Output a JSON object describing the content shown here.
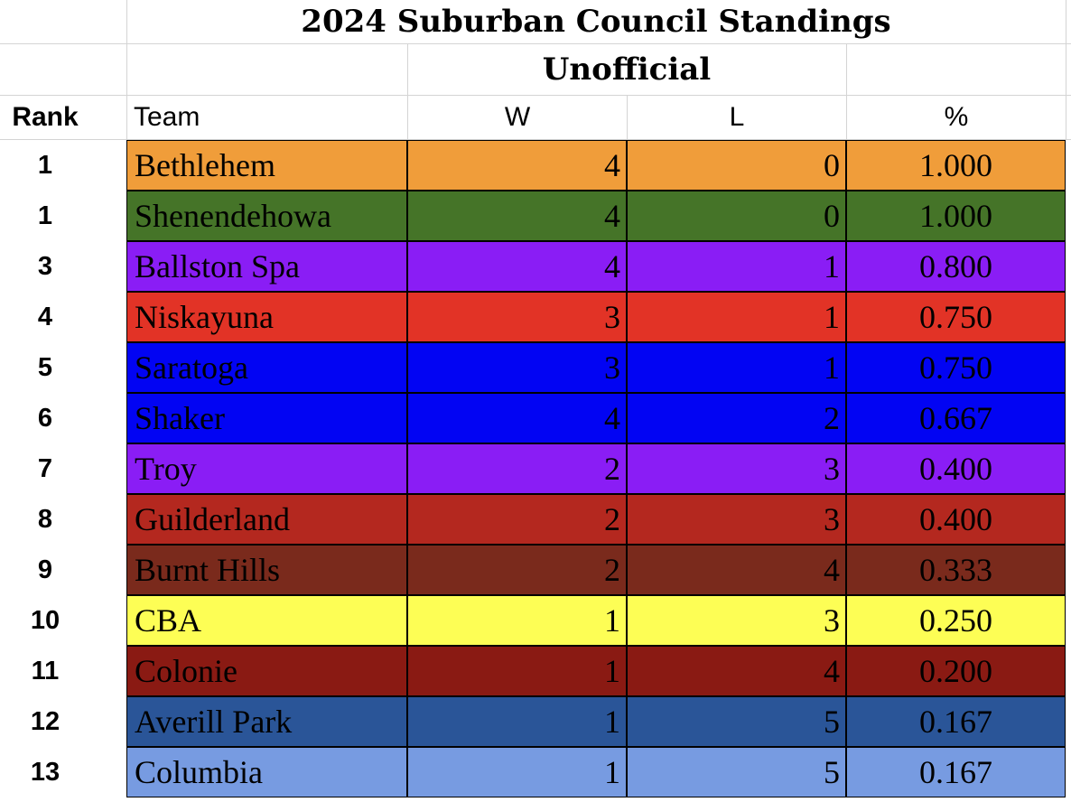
{
  "title": "2024 Suburban Council Standings",
  "subtitle": "Unofficial",
  "headers": {
    "rank": "Rank",
    "team": "Team",
    "w": "W",
    "l": "L",
    "pct": "%"
  },
  "rows": [
    {
      "rank": "1",
      "team": "Bethlehem",
      "w": "4",
      "l": "0",
      "pct": "1.000",
      "color": "#F09D3A"
    },
    {
      "rank": "1",
      "team": "Shenendehowa",
      "w": "4",
      "l": "0",
      "pct": "1.000",
      "color": "#457428"
    },
    {
      "rank": "3",
      "team": "Ballston Spa",
      "w": "4",
      "l": "1",
      "pct": "0.800",
      "color": "#8A1DF5"
    },
    {
      "rank": "4",
      "team": "Niskayuna",
      "w": "3",
      "l": "1",
      "pct": "0.750",
      "color": "#E23326"
    },
    {
      "rank": "5",
      "team": "Saratoga",
      "w": "3",
      "l": "1",
      "pct": "0.750",
      "color": "#0204F3"
    },
    {
      "rank": "6",
      "team": "Shaker",
      "w": "4",
      "l": "2",
      "pct": "0.667",
      "color": "#0204F3"
    },
    {
      "rank": "7",
      "team": "Troy",
      "w": "2",
      "l": "3",
      "pct": "0.400",
      "color": "#8A1DF5"
    },
    {
      "rank": "8",
      "team": "Guilderland",
      "w": "2",
      "l": "3",
      "pct": "0.400",
      "color": "#B4281F"
    },
    {
      "rank": "9",
      "team": "Burnt Hills",
      "w": "2",
      "l": "4",
      "pct": "0.333",
      "color": "#7A2A1C"
    },
    {
      "rank": "10",
      "team": "CBA",
      "w": "1",
      "l": "3",
      "pct": "0.250",
      "color": "#FDFE55"
    },
    {
      "rank": "11",
      "team": "Colonie",
      "w": "1",
      "l": "4",
      "pct": "0.200",
      "color": "#8A1A13"
    },
    {
      "rank": "12",
      "team": "Averill Park",
      "w": "1",
      "l": "5",
      "pct": "0.167",
      "color": "#2A5598"
    },
    {
      "rank": "13",
      "team": "Columbia",
      "w": "1",
      "l": "5",
      "pct": "0.167",
      "color": "#779BE1"
    }
  ]
}
